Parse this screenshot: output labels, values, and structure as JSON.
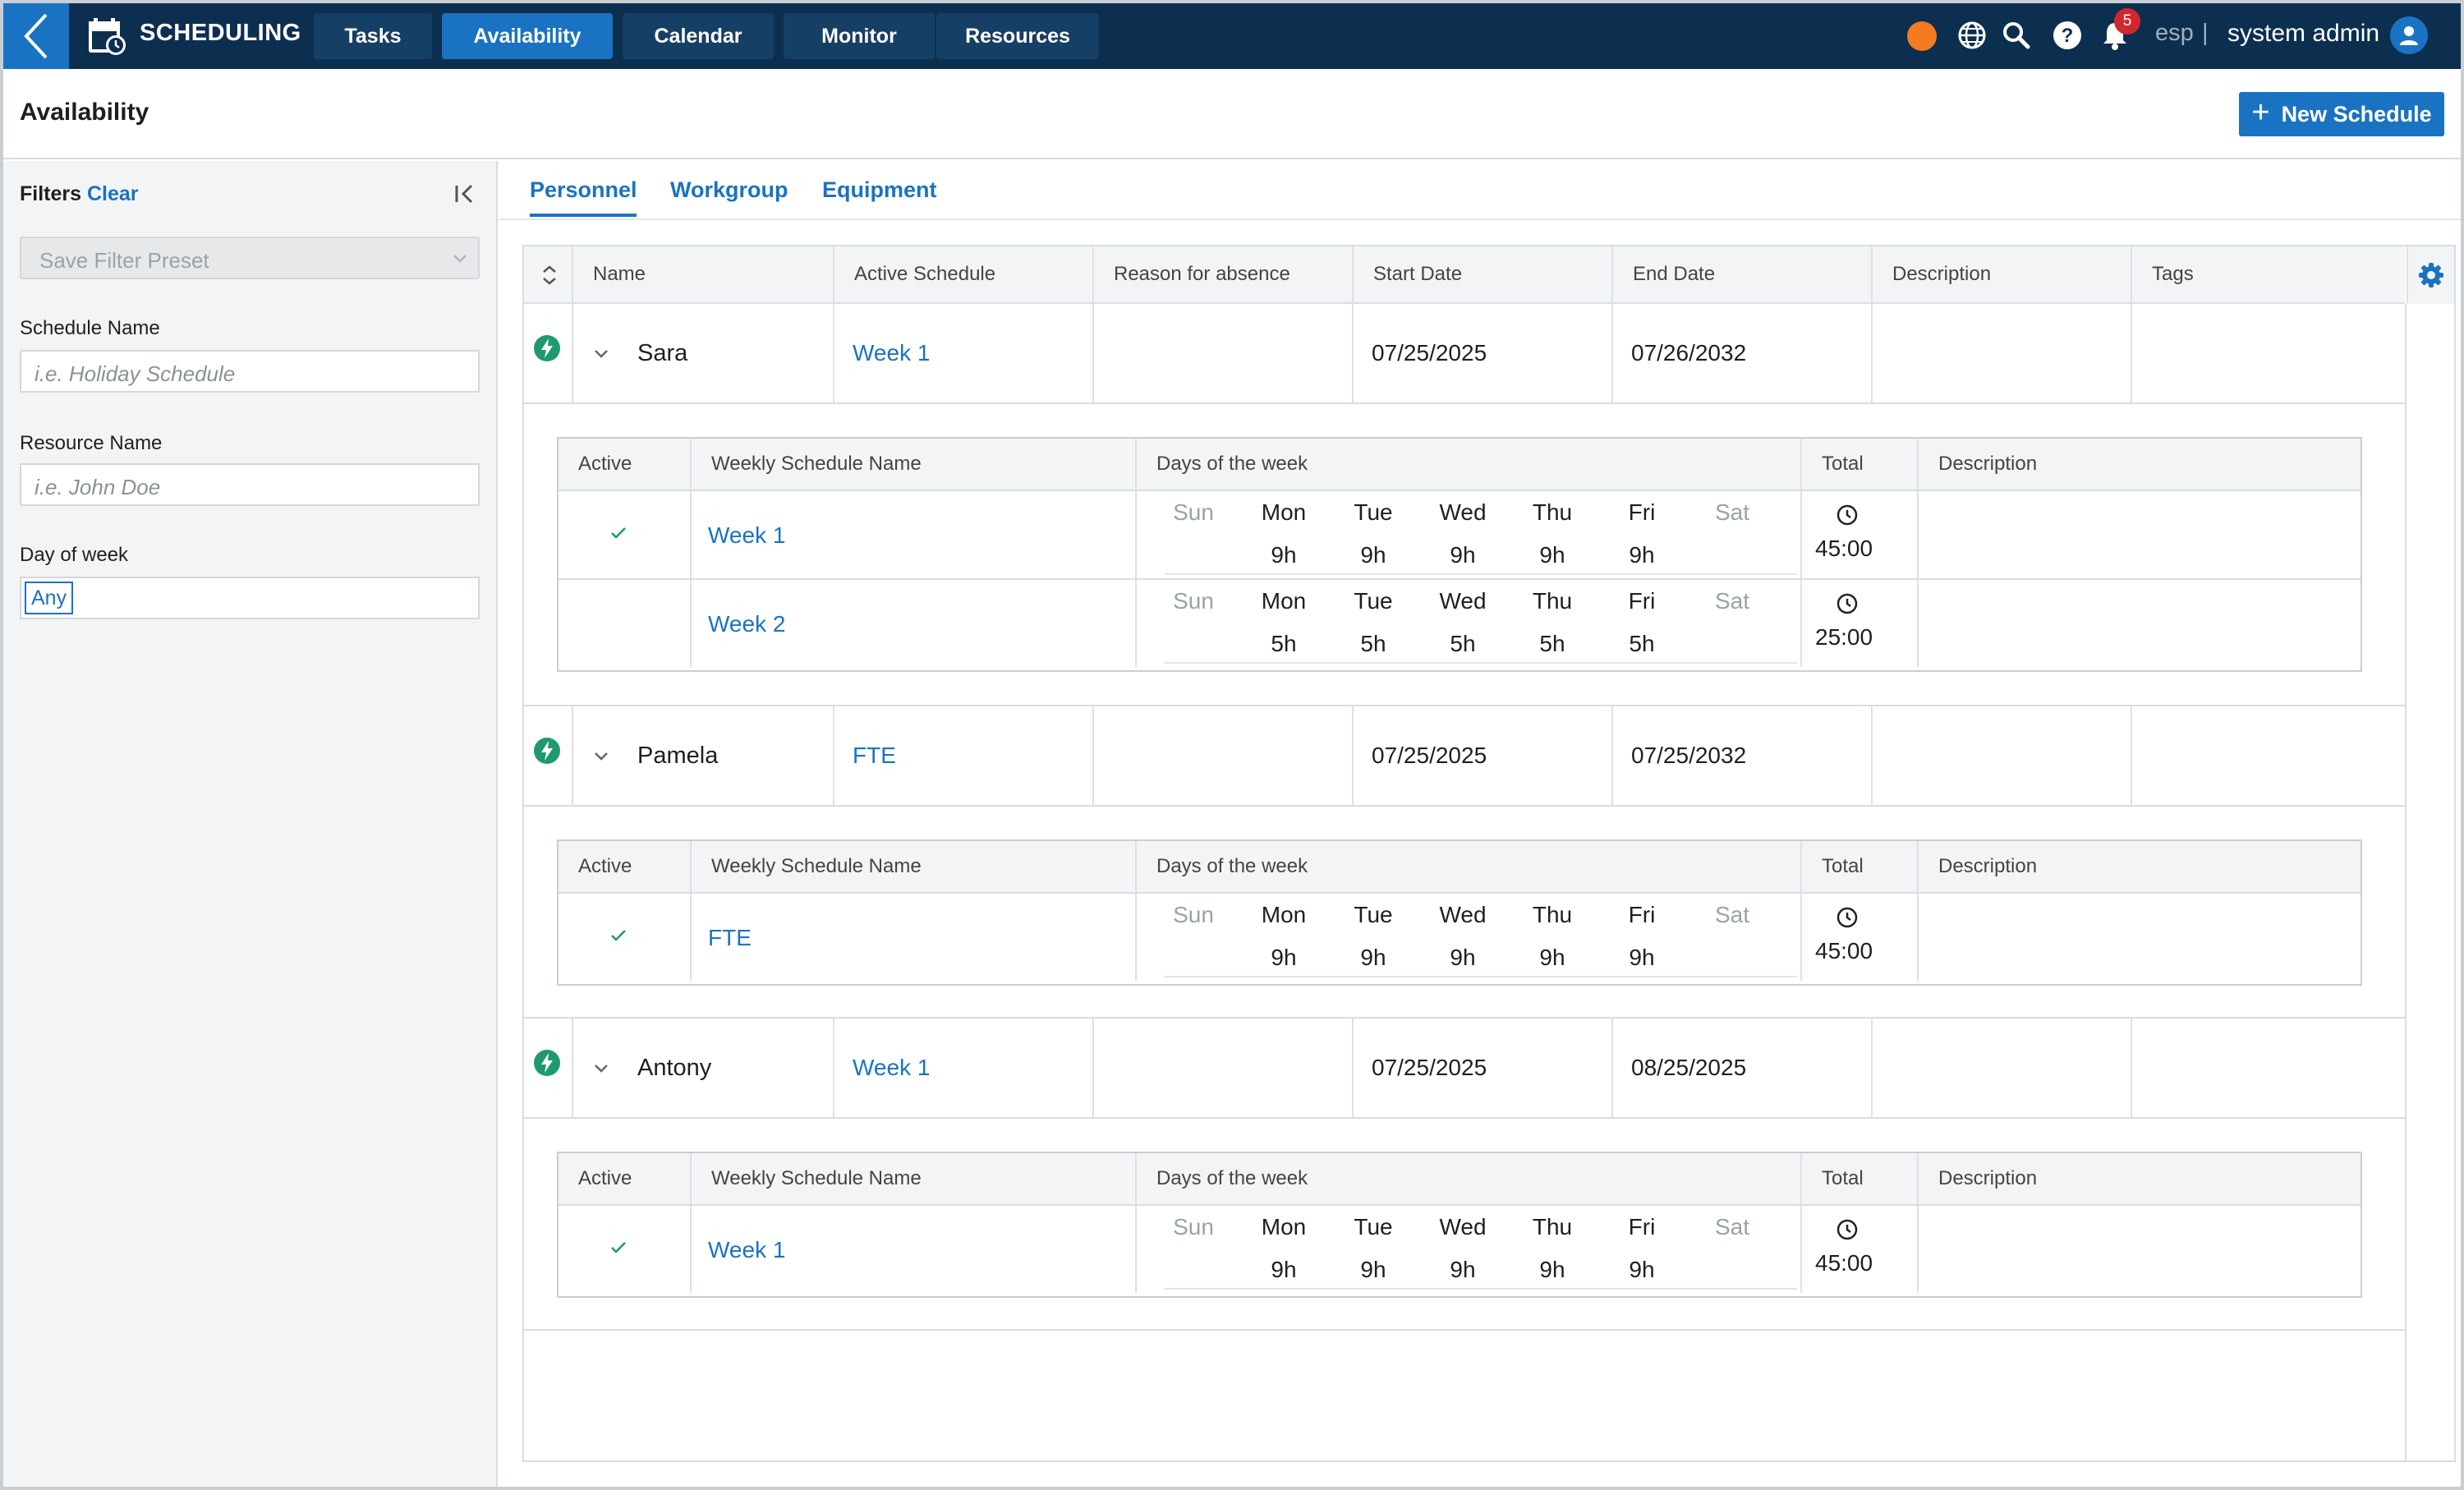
{
  "app": {
    "title": "SCHEDULING"
  },
  "nav": {
    "tabs": [
      "Tasks",
      "Availability",
      "Calendar",
      "Monitor",
      "Resources"
    ],
    "active": "Availability"
  },
  "topbar": {
    "notifications_count": "5",
    "language": "esp",
    "separator": "|",
    "user": "system admin",
    "status_color": "#f47b1f"
  },
  "page": {
    "title": "Availability",
    "new_button": "New Schedule"
  },
  "filters": {
    "title": "Filters",
    "clear": "Clear",
    "preset_placeholder": "Save Filter Preset",
    "schedule_name_label": "Schedule Name",
    "schedule_name_placeholder": "i.e. Holiday Schedule",
    "resource_name_label": "Resource Name",
    "resource_name_placeholder": "i.e. John Doe",
    "day_of_week_label": "Day of week",
    "day_of_week_value": "Any"
  },
  "subtabs": [
    "Personnel",
    "Workgroup",
    "Equipment"
  ],
  "grid": {
    "columns": [
      "Name",
      "Active Schedule",
      "Reason for absence",
      "Start Date",
      "End Date",
      "Description",
      "Tags"
    ],
    "inner_columns": [
      "Active",
      "Weekly Schedule Name",
      "Days of the week",
      "Total",
      "Description"
    ],
    "day_names": [
      "Sun",
      "Mon",
      "Tue",
      "Wed",
      "Thu",
      "Fri",
      "Sat"
    ],
    "rows": [
      {
        "name": "Sara",
        "active_schedule": "Week 1",
        "reason": "",
        "start": "07/25/2025",
        "end": "07/26/2032",
        "description": "",
        "tags": "",
        "schedules": [
          {
            "active": true,
            "name": "Week 1",
            "hours": [
              "",
              "9h",
              "9h",
              "9h",
              "9h",
              "9h",
              ""
            ],
            "total": "45:00",
            "description": ""
          },
          {
            "active": false,
            "name": "Week 2",
            "hours": [
              "",
              "5h",
              "5h",
              "5h",
              "5h",
              "5h",
              ""
            ],
            "total": "25:00",
            "description": ""
          }
        ]
      },
      {
        "name": "Pamela",
        "active_schedule": "FTE",
        "reason": "",
        "start": "07/25/2025",
        "end": "07/25/2032",
        "description": "",
        "tags": "",
        "schedules": [
          {
            "active": true,
            "name": "FTE",
            "hours": [
              "",
              "9h",
              "9h",
              "9h",
              "9h",
              "9h",
              ""
            ],
            "total": "45:00",
            "description": ""
          }
        ]
      },
      {
        "name": "Antony",
        "active_schedule": "Week 1",
        "reason": "",
        "start": "07/25/2025",
        "end": "08/25/2025",
        "description": "",
        "tags": "",
        "schedules": [
          {
            "active": true,
            "name": "Week 1",
            "hours": [
              "",
              "9h",
              "9h",
              "9h",
              "9h",
              "9h",
              ""
            ],
            "total": "45:00",
            "description": ""
          }
        ]
      }
    ]
  }
}
